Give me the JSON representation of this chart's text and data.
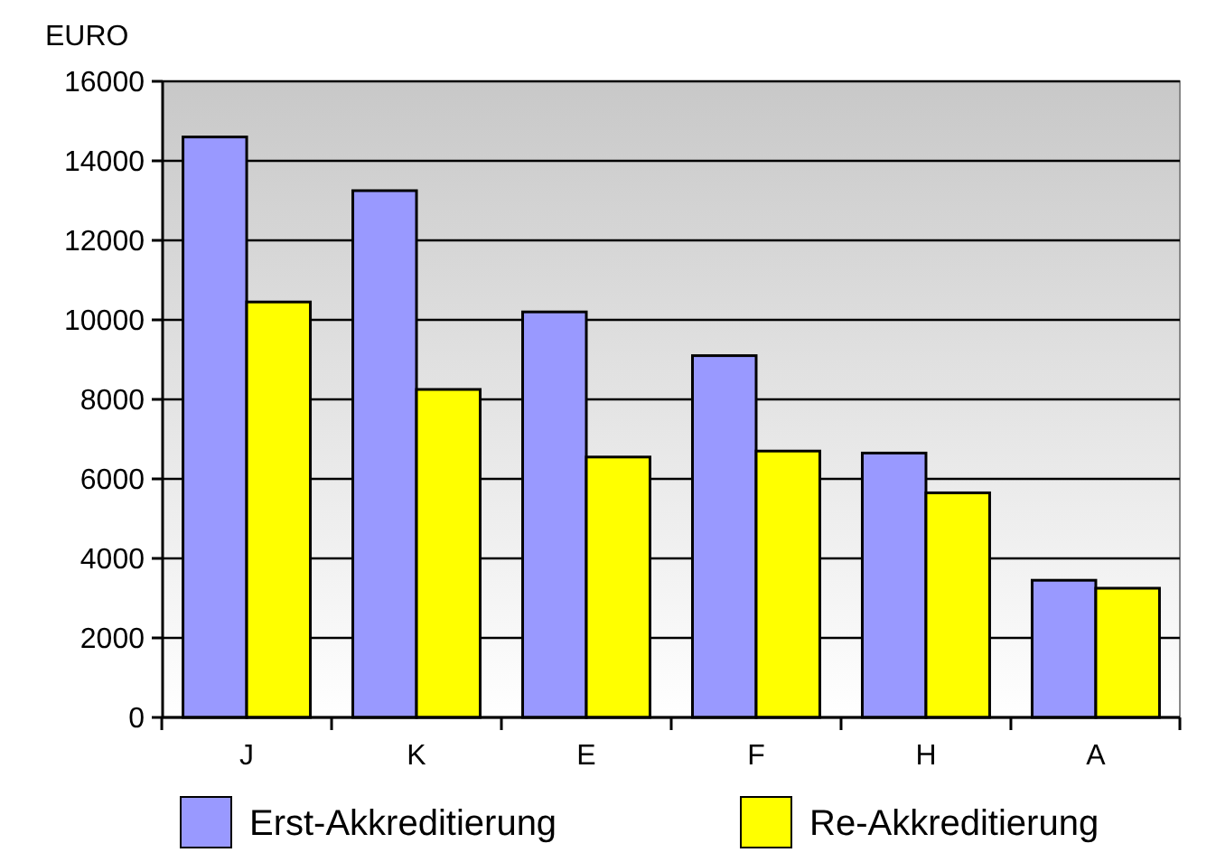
{
  "chart_data": {
    "type": "bar",
    "ylabel": "EURO",
    "categories": [
      "J",
      "K",
      "E",
      "F",
      "H",
      "A"
    ],
    "series": [
      {
        "name": "Erst-Akkreditierung",
        "color": "#9999ff",
        "values": [
          14600,
          13250,
          10200,
          9100,
          6650,
          3450
        ]
      },
      {
        "name": "Re-Akkreditierung",
        "color": "#ffff00",
        "values": [
          10450,
          8250,
          6550,
          6700,
          5650,
          3250
        ]
      }
    ],
    "ylim": [
      0,
      16000
    ],
    "yticks": [
      0,
      2000,
      4000,
      6000,
      8000,
      10000,
      12000,
      14000,
      16000
    ],
    "grid": "y",
    "legend": "bottom"
  }
}
